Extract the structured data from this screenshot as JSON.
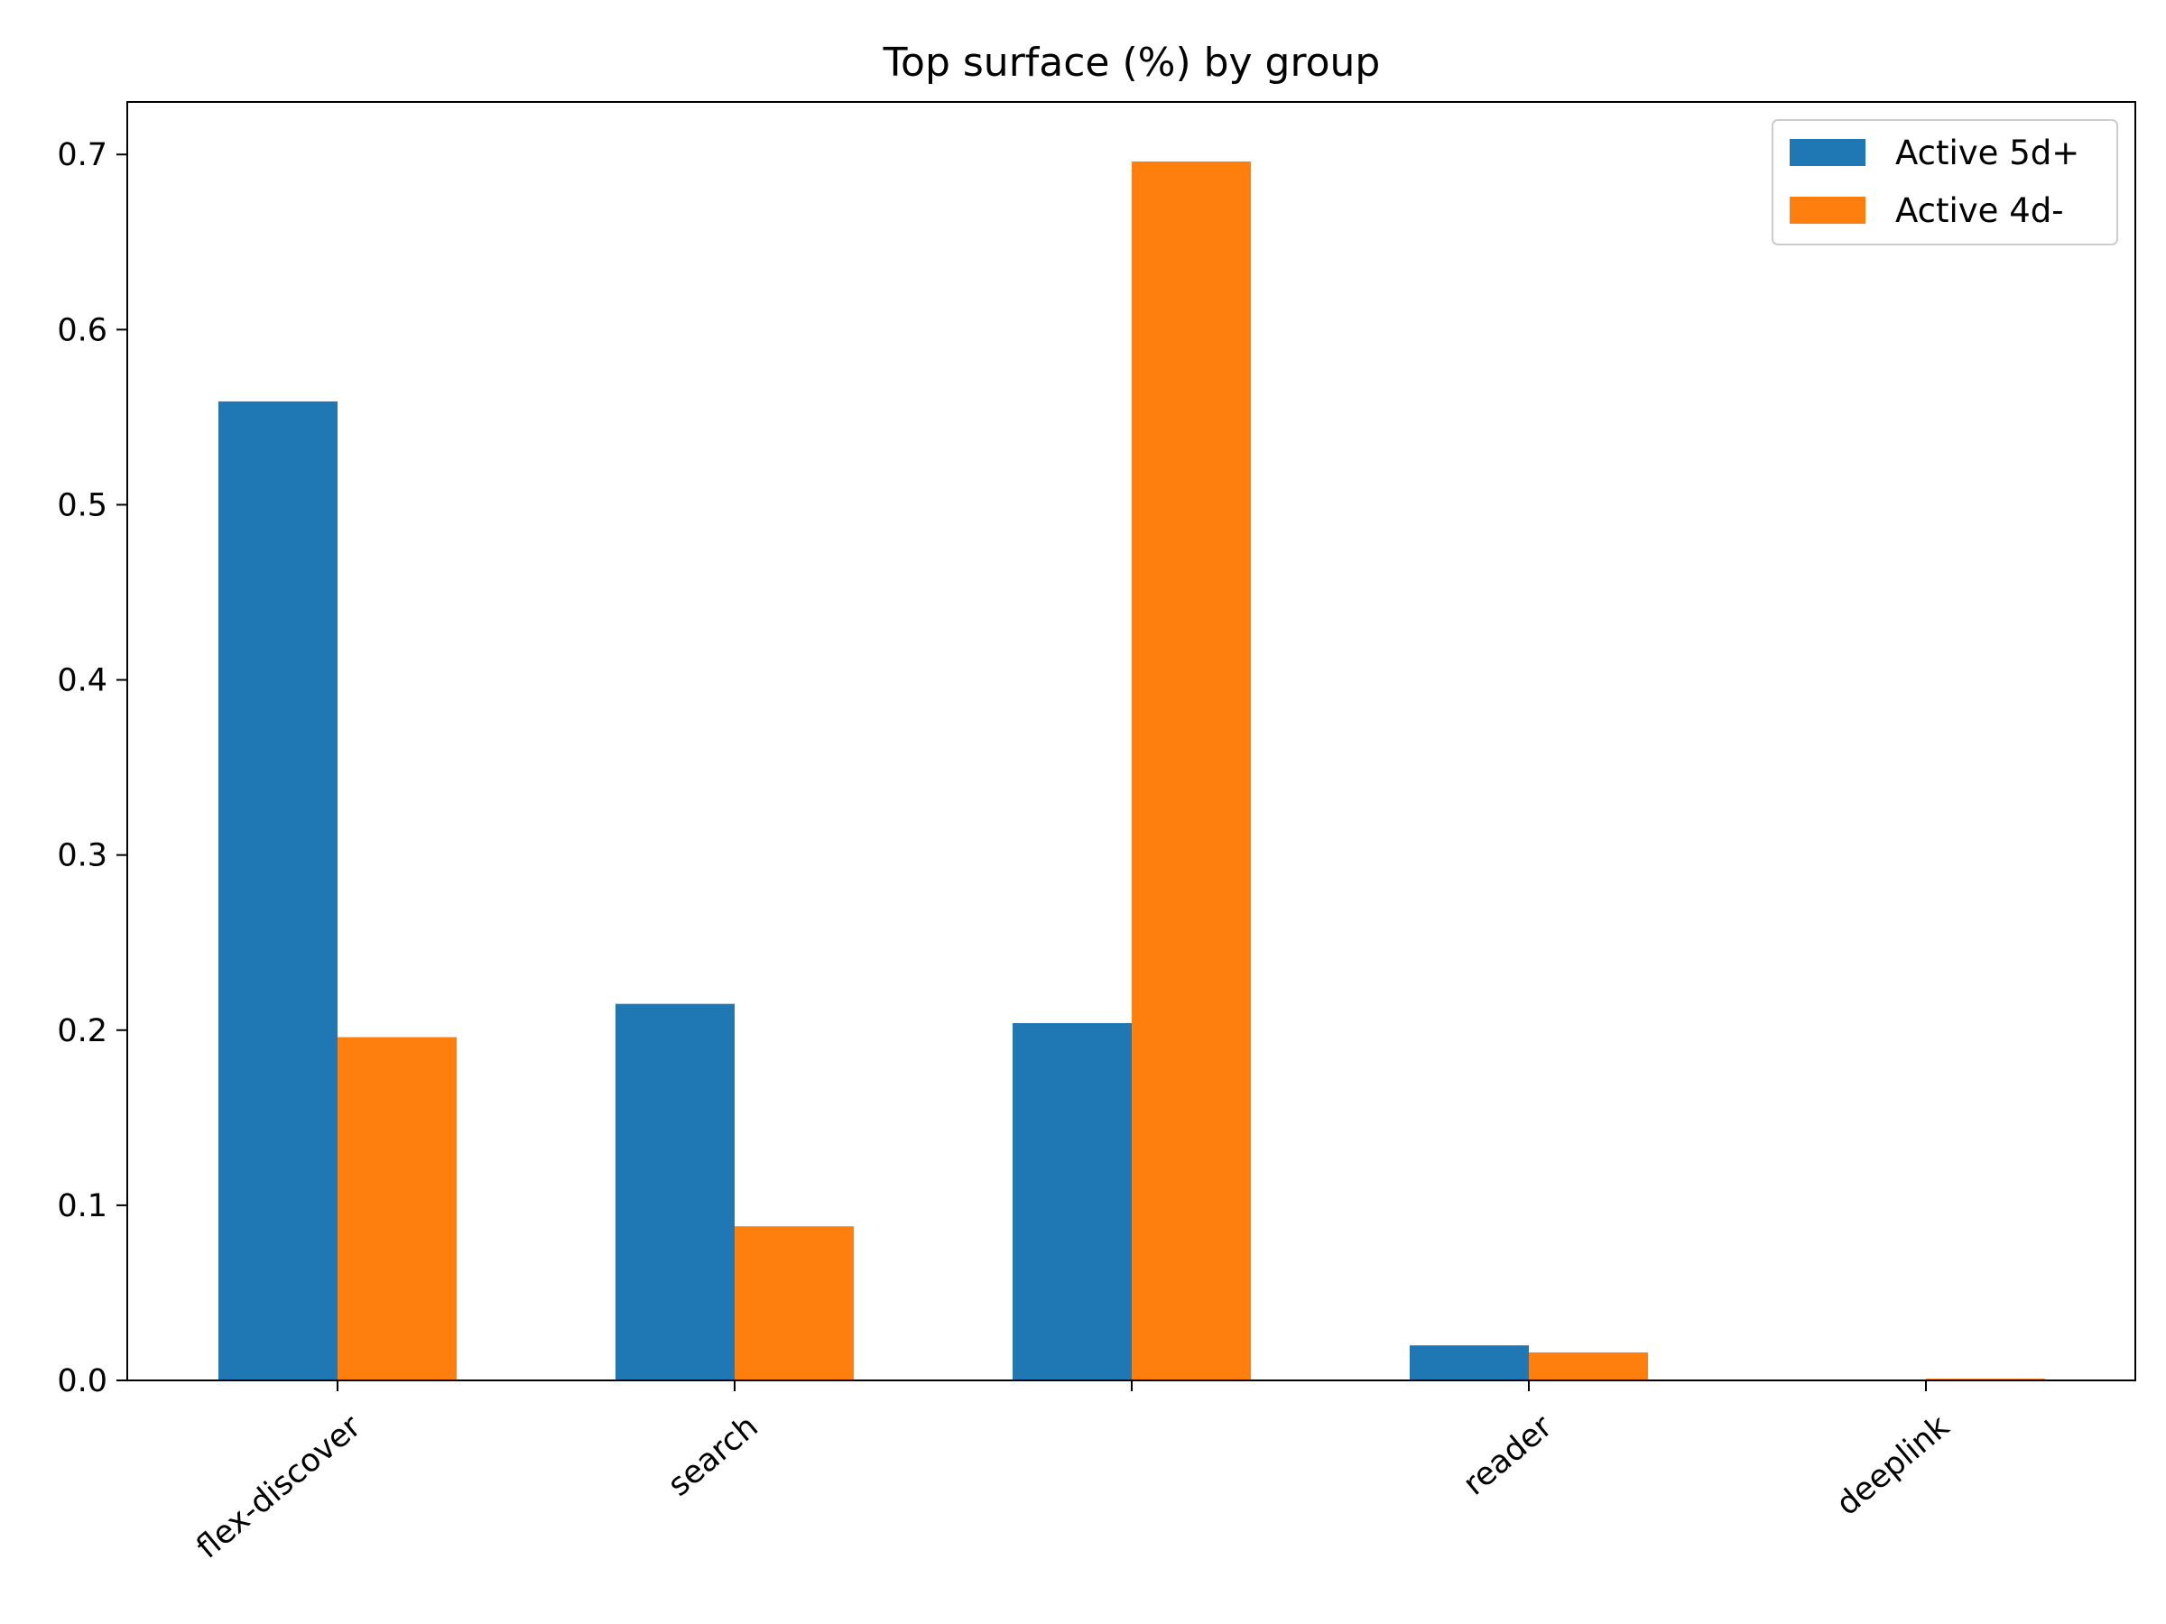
{
  "chart_data": {
    "type": "bar",
    "title": "Top surface (%) by group",
    "xlabel": "",
    "ylabel": "",
    "categories": [
      "flex-discover",
      "search",
      "",
      "reader",
      "deeplink"
    ],
    "series": [
      {
        "name": "Active 5d+",
        "color": "#1f77b4",
        "values": [
          0.559,
          0.215,
          0.204,
          0.02,
          0.0
        ]
      },
      {
        "name": "Active 4d-",
        "color": "#ff7f0e",
        "values": [
          0.196,
          0.088,
          0.696,
          0.016,
          0.001
        ]
      }
    ],
    "ylim": [
      0,
      0.73
    ],
    "yticks": [
      0.0,
      0.1,
      0.2,
      0.3,
      0.4,
      0.5,
      0.6,
      0.7
    ],
    "ytick_labels": [
      "0.0",
      "0.1",
      "0.2",
      "0.3",
      "0.4",
      "0.5",
      "0.6",
      "0.7"
    ],
    "grid": false,
    "legend_position": "top-right"
  }
}
